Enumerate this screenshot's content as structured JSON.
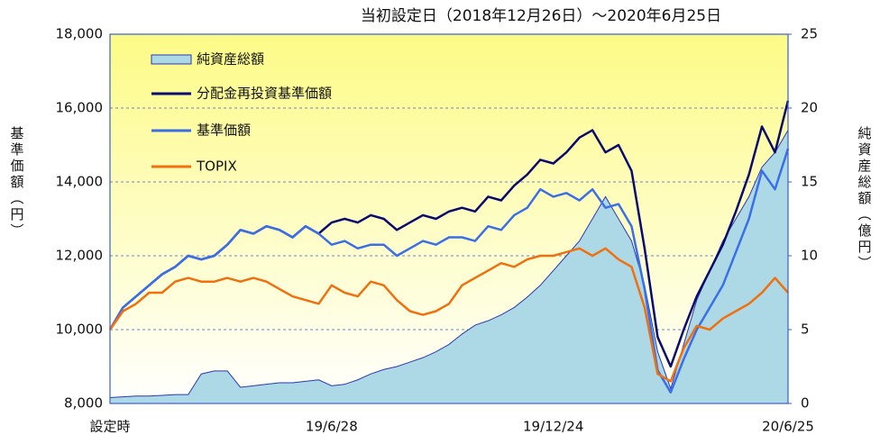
{
  "chart_data": {
    "type": "line",
    "title": "当初設定日（2018年12月26日）～2020年6月25日",
    "y_label": "基準価額（円）",
    "y2_label": "純資産総額（億円）",
    "categories": [
      "設定時",
      null,
      null,
      null,
      null,
      null,
      null,
      null,
      null,
      null,
      null,
      null,
      null,
      null,
      null,
      null,
      null,
      "19/6/28",
      null,
      null,
      null,
      null,
      null,
      null,
      null,
      null,
      null,
      null,
      null,
      null,
      null,
      null,
      null,
      null,
      "19/12/24",
      null,
      null,
      null,
      null,
      null,
      null,
      null,
      null,
      null,
      null,
      null,
      null,
      null,
      null,
      null,
      null,
      null,
      "20/6/25"
    ],
    "ylim": [
      8000,
      18000
    ],
    "yticks": [
      {
        "value": 8000,
        "label": "8,000"
      },
      {
        "value": 10000,
        "label": "10,000"
      },
      {
        "value": 12000,
        "label": "12,000"
      },
      {
        "value": 14000,
        "label": "14,000"
      },
      {
        "value": 16000,
        "label": "16,000"
      },
      {
        "value": 18000,
        "label": "18,000"
      }
    ],
    "y2lim": [
      0,
      25
    ],
    "y2ticks": [
      0,
      5,
      10,
      15,
      20,
      25
    ],
    "grid": true,
    "legend": "upper left",
    "series": [
      {
        "name": "純資産総額",
        "type": "area",
        "axis": "y2",
        "color": "#add8e6",
        "edge_color": "#2a3ab0",
        "values": [
          0.4,
          0.45,
          0.5,
          0.5,
          0.55,
          0.6,
          0.6,
          2.0,
          2.2,
          2.2,
          1.1,
          1.2,
          1.3,
          1.4,
          1.4,
          1.5,
          1.6,
          1.2,
          1.3,
          1.6,
          2.0,
          2.3,
          2.5,
          2.8,
          3.1,
          3.5,
          4.0,
          4.7,
          5.3,
          5.6,
          6.0,
          6.5,
          7.2,
          8.0,
          9.0,
          10.0,
          11.0,
          12.5,
          14.0,
          12.5,
          11.0,
          8.0,
          3.5,
          1.0,
          4.0,
          7.0,
          9.0,
          11.0,
          12.5,
          14.0,
          16.0,
          17.0,
          18.5
        ]
      },
      {
        "name": "分配金再投資基準価額",
        "type": "line",
        "color": "#0a0a6e",
        "values": [
          10000,
          10600,
          10900,
          11200,
          11500,
          11700,
          12000,
          11900,
          12000,
          12300,
          12700,
          12600,
          12800,
          12700,
          12500,
          12800,
          12600,
          12900,
          13000,
          12900,
          13100,
          13000,
          12700,
          12900,
          13100,
          13000,
          13200,
          13300,
          13200,
          13600,
          13500,
          13900,
          14200,
          14600,
          14500,
          14800,
          15200,
          15400,
          14800,
          15000,
          14300,
          12200,
          9800,
          9000,
          10000,
          10900,
          11600,
          12300,
          13200,
          14200,
          15500,
          14800,
          16200
        ]
      },
      {
        "name": "基準価額",
        "type": "line",
        "color": "#3a6fe8",
        "values": [
          10000,
          10600,
          10900,
          11200,
          11500,
          11700,
          12000,
          11900,
          12000,
          12300,
          12700,
          12600,
          12800,
          12700,
          12500,
          12800,
          12600,
          12300,
          12400,
          12200,
          12300,
          12300,
          12000,
          12200,
          12400,
          12300,
          12500,
          12500,
          12400,
          12800,
          12700,
          13100,
          13300,
          13800,
          13600,
          13700,
          13500,
          13800,
          13300,
          13400,
          12800,
          11100,
          8900,
          8300,
          9200,
          10000,
          10600,
          11200,
          12100,
          13000,
          14300,
          13800,
          14900
        ]
      },
      {
        "name": "TOPIX",
        "type": "line",
        "color": "#f07010",
        "values": [
          10000,
          10500,
          10700,
          11000,
          11000,
          11300,
          11400,
          11300,
          11300,
          11400,
          11300,
          11400,
          11300,
          11100,
          10900,
          10800,
          10700,
          11200,
          11000,
          10900,
          11300,
          11200,
          10800,
          10500,
          10400,
          10500,
          10700,
          11200,
          11400,
          11600,
          11800,
          11700,
          11900,
          12000,
          12000,
          12100,
          12200,
          12000,
          12200,
          11900,
          11700,
          10600,
          8800,
          8600,
          9500,
          10100,
          10000,
          10300,
          10500,
          10700,
          11000,
          11400,
          11000
        ]
      }
    ]
  }
}
